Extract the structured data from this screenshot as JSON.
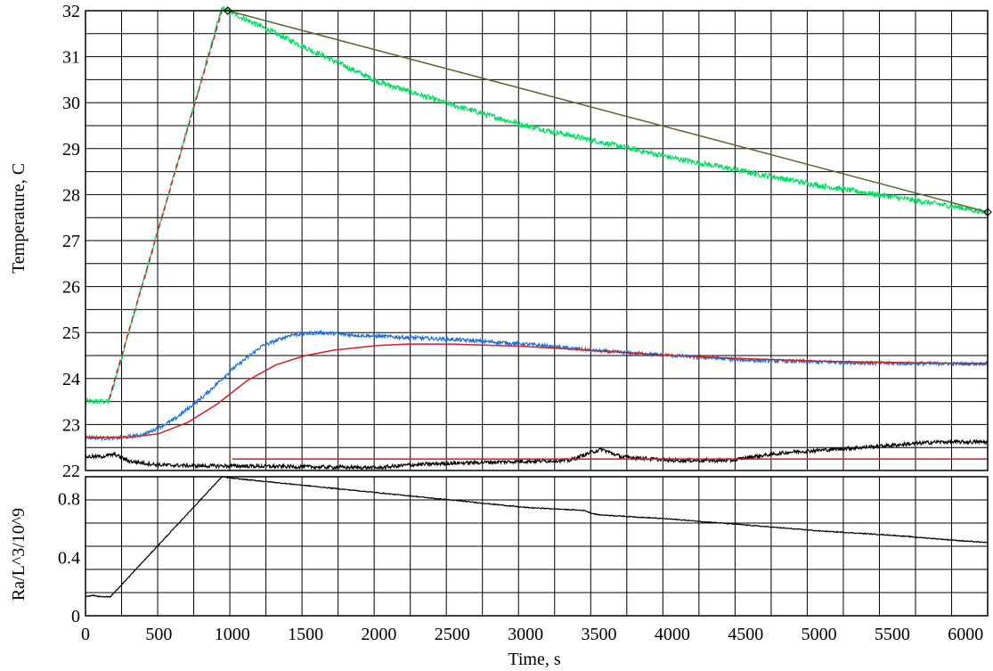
{
  "chart_data": [
    {
      "type": "line",
      "title": "",
      "xlabel": "",
      "ylabel": "Temperature, C",
      "xlim": [
        0,
        6150
      ],
      "ylim": [
        22,
        32
      ],
      "grid": true,
      "x_ticks": [],
      "y_ticks": [
        "22",
        "23",
        "24",
        "25",
        "26",
        "27",
        "28",
        "29",
        "30",
        "31",
        "32"
      ],
      "series": [
        {
          "color": "#00e060",
          "noise": 0.06,
          "x": [
            0,
            160,
            930,
            1000,
            1500,
            2000,
            2500,
            3000,
            3500,
            4000,
            4500,
            5000,
            5500,
            6000,
            6150
          ],
          "y": [
            23.5,
            23.5,
            32.05,
            31.95,
            31.2,
            30.45,
            29.95,
            29.5,
            29.15,
            28.8,
            28.5,
            28.2,
            27.95,
            27.7,
            27.6
          ]
        },
        {
          "color": "#d42020",
          "dashed": true,
          "x": [
            160,
            930
          ],
          "y": [
            23.55,
            32.0
          ]
        },
        {
          "color": "#556b2f",
          "x": [
            970,
            6150
          ],
          "y": [
            32.0,
            27.62
          ]
        },
        {
          "color": "#1f6fd8",
          "noise": 0.04,
          "x": [
            0,
            200,
            400,
            600,
            800,
            1000,
            1200,
            1400,
            1600,
            1800,
            2000,
            2500,
            3000,
            3500,
            4000,
            4500,
            5000,
            5500,
            6000,
            6150
          ],
          "y": [
            22.72,
            22.7,
            22.78,
            23.1,
            23.6,
            24.2,
            24.7,
            24.95,
            25.0,
            24.95,
            24.92,
            24.85,
            24.75,
            24.6,
            24.5,
            24.4,
            24.36,
            24.33,
            24.32,
            24.33
          ]
        },
        {
          "color": "#d42020",
          "x": [
            0,
            300,
            500,
            700,
            900,
            1100,
            1300,
            1500,
            1700,
            2000,
            2200,
            2500,
            3000,
            3500,
            4000,
            4500,
            5000,
            5500,
            6000,
            6150
          ],
          "y": [
            22.72,
            22.72,
            22.8,
            23.05,
            23.45,
            23.95,
            24.3,
            24.5,
            24.62,
            24.72,
            24.75,
            24.75,
            24.7,
            24.6,
            24.5,
            24.43,
            24.38,
            24.35,
            24.33,
            24.33
          ]
        },
        {
          "color": "#000000",
          "noise": 0.04,
          "x": [
            0,
            100,
            200,
            300,
            500,
            800,
            1000,
            1500,
            2000,
            2200,
            2500,
            3000,
            3300,
            3450,
            3520,
            3650,
            4000,
            4400,
            4550,
            4800,
            5200,
            5500,
            5800,
            6150
          ],
          "y": [
            22.3,
            22.3,
            22.35,
            22.2,
            22.12,
            22.1,
            22.1,
            22.08,
            22.06,
            22.12,
            22.16,
            22.2,
            22.22,
            22.4,
            22.46,
            22.3,
            22.22,
            22.22,
            22.3,
            22.4,
            22.48,
            22.55,
            22.62,
            22.62
          ]
        },
        {
          "color": "#d42020",
          "x": [
            1000,
            6150
          ],
          "y": [
            22.25,
            22.25
          ]
        }
      ],
      "markers": [
        {
          "x": 970,
          "y": 32.0
        },
        {
          "x": 6150,
          "y": 27.62
        }
      ]
    },
    {
      "type": "line",
      "title": "",
      "xlabel": "Time, s",
      "ylabel": "Ra/L^3/10^9",
      "xlim": [
        0,
        6150
      ],
      "ylim": [
        0,
        0.95
      ],
      "grid": true,
      "x_ticks": [
        "0",
        "500",
        "1000",
        "1500",
        "2000",
        "2500",
        "3000",
        "3500",
        "4000",
        "4500",
        "5000",
        "5500",
        "6000"
      ],
      "y_ticks": [
        "0",
        "0.4",
        "0.8"
      ],
      "y_tick_values": [
        0,
        0.4,
        0.8
      ],
      "series": [
        {
          "color": "#000000",
          "noise": 0.003,
          "x": [
            0,
            50,
            100,
            170,
            930,
            1000,
            1500,
            2000,
            2500,
            3000,
            3400,
            3450,
            3500,
            4000,
            4500,
            5000,
            5500,
            6000,
            6150
          ],
          "y": [
            0.13,
            0.14,
            0.13,
            0.13,
            0.95,
            0.94,
            0.89,
            0.84,
            0.79,
            0.74,
            0.72,
            0.7,
            0.69,
            0.66,
            0.62,
            0.58,
            0.55,
            0.51,
            0.5
          ]
        }
      ]
    }
  ]
}
